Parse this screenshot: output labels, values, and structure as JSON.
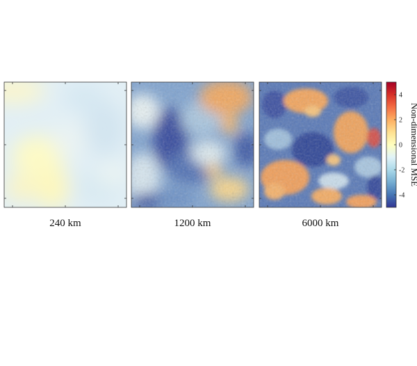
{
  "panels": [
    {
      "label": "240 km",
      "anomaly_range": [
        -0.9,
        0.5
      ]
    },
    {
      "label": "1200 km",
      "anomaly_range": [
        -4.5,
        3.0
      ]
    },
    {
      "label": "6000 km",
      "anomaly_range": [
        -4.5,
        3.5
      ]
    }
  ],
  "colorbar": {
    "label": "Non-dimensional MSE",
    "range": [
      -5,
      5
    ],
    "ticks": [
      "4",
      "2",
      "0",
      "-2",
      "-4"
    ],
    "tick_values": [
      4,
      2,
      0,
      -2,
      -4
    ],
    "colors": [
      "#313695",
      "#4575b4",
      "#74add1",
      "#abd9e9",
      "#e0f3f8",
      "#ffffbf",
      "#fee090",
      "#fdae61",
      "#f46d43",
      "#d73027",
      "#a50026"
    ]
  },
  "chart_data": {
    "type": "heatmap",
    "title": "",
    "colorbar_label": "Non-dimensional MSE",
    "colorbar_range": [
      -5,
      5
    ],
    "colorbar_ticks": [
      4,
      2,
      0,
      -2,
      -4
    ],
    "panels": [
      "240 km",
      "1200 km",
      "6000 km"
    ]
  }
}
